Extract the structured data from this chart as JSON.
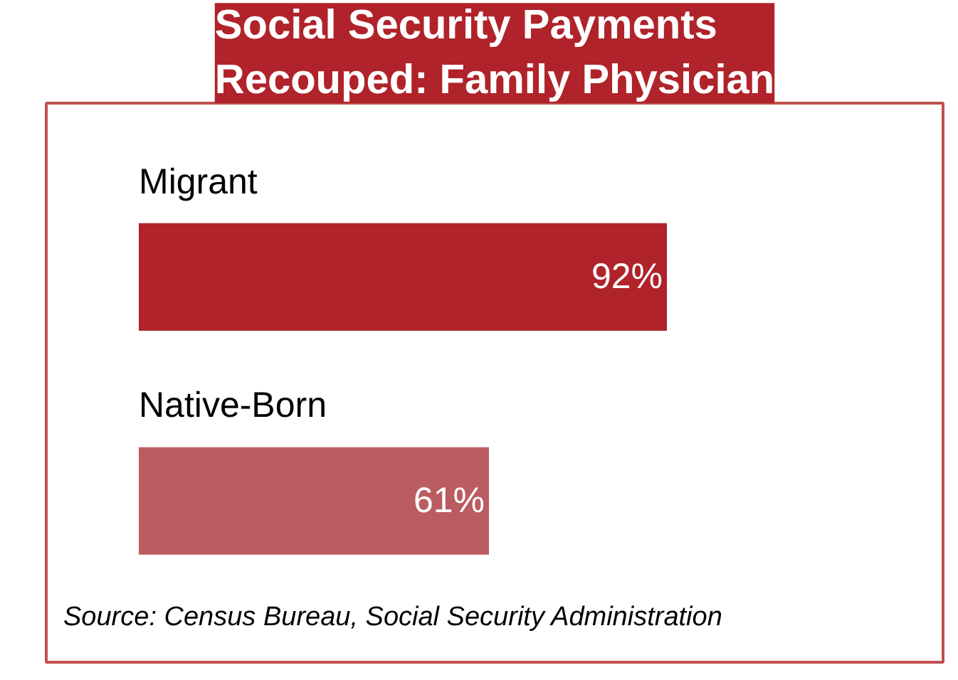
{
  "chart_data": {
    "type": "bar",
    "orientation": "horizontal",
    "title": "Social Security Payments\nRecouped: Family Physician",
    "categories": [
      "Migrant",
      "Native-Born"
    ],
    "values": [
      92,
      61
    ],
    "colors": [
      "#b0232a",
      "#bb5c60"
    ],
    "value_labels": [
      "92%",
      "61%"
    ],
    "annotations": [
      "Source: Census Bureau, Social Security Administration"
    ],
    "grid": false
  }
}
